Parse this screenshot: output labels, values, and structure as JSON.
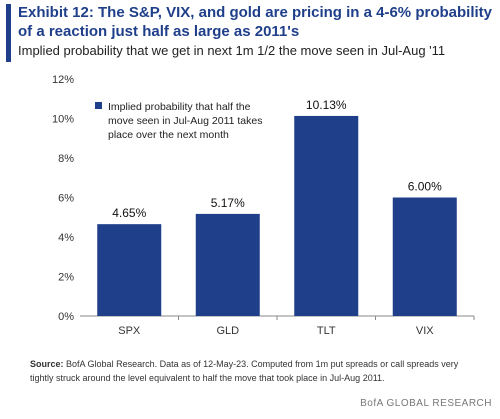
{
  "title": "Exhibit 12: The S&P, VIX, and gold are pricing in a 4-6% probability of a reaction just half as large as 2011's",
  "subtitle": "Implied probability that we get in next 1m 1/2 the move seen in Jul-Aug '11",
  "source_label": "Source:",
  "source_text": "BofA Global Research. Data as of 12-May-23. Computed from 1m put spreads or call spreads very tightly struck around the level equivalent to half the move that took place in Jul-Aug 2011.",
  "credit": "BofA GLOBAL RESEARCH",
  "colors": {
    "bar": "#1f3f8a",
    "title": "#1f3f8a",
    "axis": "#888888"
  },
  "chart_data": {
    "type": "bar",
    "categories": [
      "SPX",
      "GLD",
      "TLT",
      "VIX"
    ],
    "series": [
      {
        "name": "Implied probability that half the move seen in Jul-Aug 2011 takes place over the next month",
        "values": [
          4.65,
          5.17,
          10.13,
          6.0
        ]
      }
    ],
    "data_labels": [
      "4.65%",
      "5.17%",
      "10.13%",
      "6.00%"
    ],
    "yticks": [
      "0%",
      "2%",
      "4%",
      "6%",
      "8%",
      "10%",
      "12%"
    ],
    "ylim": [
      0,
      12
    ],
    "legend_position": "top-left",
    "grid": false
  }
}
